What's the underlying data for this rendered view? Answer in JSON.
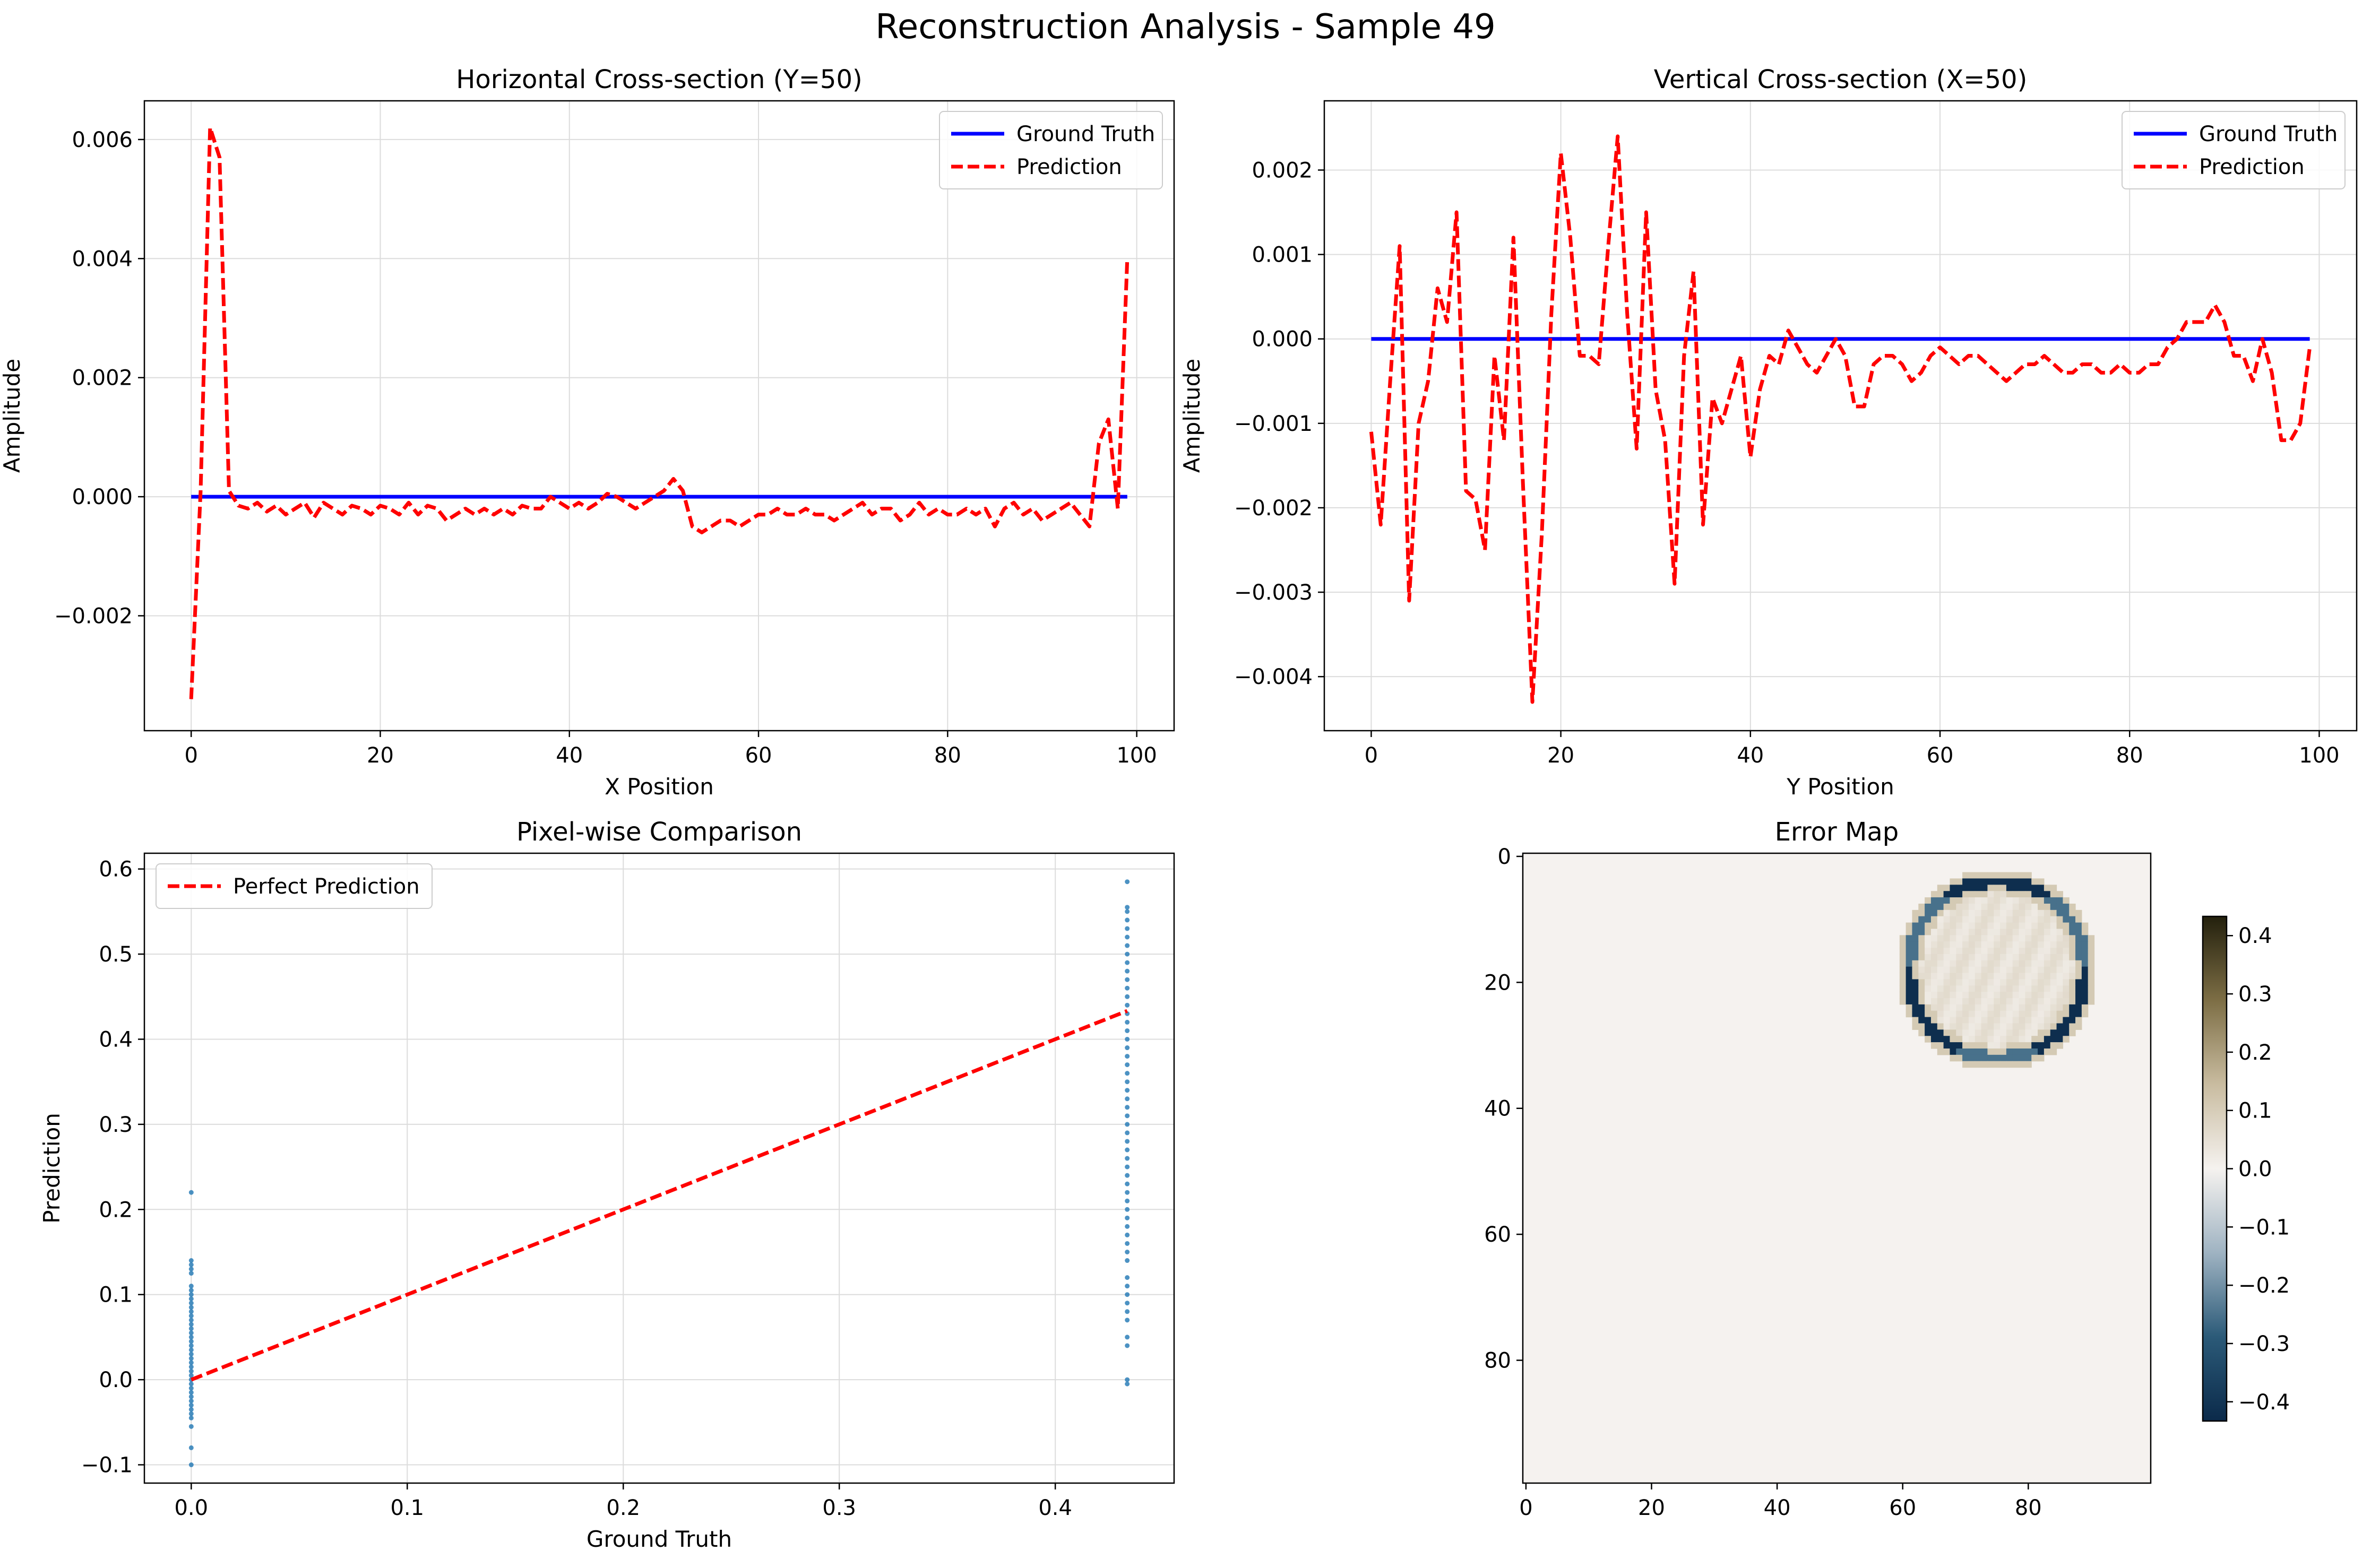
{
  "figure": {
    "title": "Reconstruction Analysis - Sample 49"
  },
  "chart_data": [
    {
      "type": "line",
      "title": "Horizontal Cross-section (Y=50)",
      "xlabel": "X Position",
      "ylabel": "Amplitude",
      "xlim": [
        -4.95,
        103.95
      ],
      "ylim": [
        -0.00393,
        0.00665
      ],
      "xticks": [
        0,
        20,
        40,
        60,
        80,
        100
      ],
      "yticks": [
        -0.002,
        0,
        0.002,
        0.004,
        0.006
      ],
      "ytick_labels": [
        "−0.002",
        "0.000",
        "0.002",
        "0.004",
        "0.006"
      ],
      "grid": true,
      "legend": "upper-right",
      "series": [
        {
          "name": "Ground Truth",
          "color": "#0000ff",
          "style": "solid",
          "x_start": 0,
          "x_step": 1,
          "values": [
            0,
            0,
            0,
            0,
            0,
            0,
            0,
            0,
            0,
            0,
            0,
            0,
            0,
            0,
            0,
            0,
            0,
            0,
            0,
            0,
            0,
            0,
            0,
            0,
            0,
            0,
            0,
            0,
            0,
            0,
            0,
            0,
            0,
            0,
            0,
            0,
            0,
            0,
            0,
            0,
            0,
            0,
            0,
            0,
            0,
            0,
            0,
            0,
            0,
            0,
            0,
            0,
            0,
            0,
            0,
            0,
            0,
            0,
            0,
            0,
            0,
            0,
            0,
            0,
            0,
            0,
            0,
            0,
            0,
            0,
            0,
            0,
            0,
            0,
            0,
            0,
            0,
            0,
            0,
            0,
            0,
            0,
            0,
            0,
            0,
            0,
            0,
            0,
            0,
            0,
            0,
            0,
            0,
            0,
            0,
            0,
            0,
            0,
            0,
            0
          ]
        },
        {
          "name": "Prediction",
          "color": "#ff0000",
          "style": "dashed",
          "x_start": 0,
          "x_step": 1,
          "values": [
            -0.0034,
            0.0001,
            0.0062,
            0.0057,
            0.0001,
            -0.00015,
            -0.0002,
            -0.0001,
            -0.00025,
            -0.00015,
            -0.0003,
            -0.0002,
            -0.0001,
            -0.00035,
            -0.0001,
            -0.0002,
            -0.0003,
            -0.00015,
            -0.0002,
            -0.0003,
            -0.00015,
            -0.0002,
            -0.0003,
            -0.0001,
            -0.0003,
            -0.00015,
            -0.0002,
            -0.0004,
            -0.0003,
            -0.0002,
            -0.0003,
            -0.0002,
            -0.0003,
            -0.0002,
            -0.0003,
            -0.00015,
            -0.0002,
            -0.0002,
            0.0,
            -0.0001,
            -0.0002,
            -0.0001,
            -0.0002,
            -0.0001,
            5e-05,
            0.0,
            -0.0001,
            -0.0002,
            -0.0001,
            0.0,
            0.0001,
            0.0003,
            0.0001,
            -0.0005,
            -0.0006,
            -0.0005,
            -0.0004,
            -0.0004,
            -0.0005,
            -0.0004,
            -0.0003,
            -0.0003,
            -0.0002,
            -0.0003,
            -0.0003,
            -0.0002,
            -0.0003,
            -0.0003,
            -0.0004,
            -0.0003,
            -0.0002,
            -0.0001,
            -0.0003,
            -0.0002,
            -0.0002,
            -0.0004,
            -0.0003,
            -0.0001,
            -0.0003,
            -0.0002,
            -0.0003,
            -0.0003,
            -0.0002,
            -0.0003,
            -0.0002,
            -0.0005,
            -0.0002,
            -0.0001,
            -0.0003,
            -0.0002,
            -0.0004,
            -0.0003,
            -0.0002,
            -0.0001,
            -0.0003,
            -0.0005,
            0.0009,
            0.0013,
            -0.0002,
            0.004
          ]
        }
      ]
    },
    {
      "type": "line",
      "title": "Vertical Cross-section (X=50)",
      "xlabel": "Y Position",
      "ylabel": "Amplitude",
      "xlim": [
        -4.95,
        103.95
      ],
      "ylim": [
        -0.00464,
        0.00282
      ],
      "xticks": [
        0,
        20,
        40,
        60,
        80,
        100
      ],
      "yticks": [
        -0.004,
        -0.003,
        -0.002,
        -0.001,
        0,
        0.001,
        0.002
      ],
      "ytick_labels": [
        "−0.004",
        "−0.003",
        "−0.002",
        "−0.001",
        "0.000",
        "0.001",
        "0.002"
      ],
      "grid": true,
      "legend": "upper-right",
      "series": [
        {
          "name": "Ground Truth",
          "color": "#0000ff",
          "style": "solid",
          "x_start": 0,
          "x_step": 1,
          "values": [
            0,
            0,
            0,
            0,
            0,
            0,
            0,
            0,
            0,
            0,
            0,
            0,
            0,
            0,
            0,
            0,
            0,
            0,
            0,
            0,
            0,
            0,
            0,
            0,
            0,
            0,
            0,
            0,
            0,
            0,
            0,
            0,
            0,
            0,
            0,
            0,
            0,
            0,
            0,
            0,
            0,
            0,
            0,
            0,
            0,
            0,
            0,
            0,
            0,
            0,
            0,
            0,
            0,
            0,
            0,
            0,
            0,
            0,
            0,
            0,
            0,
            0,
            0,
            0,
            0,
            0,
            0,
            0,
            0,
            0,
            0,
            0,
            0,
            0,
            0,
            0,
            0,
            0,
            0,
            0,
            0,
            0,
            0,
            0,
            0,
            0,
            0,
            0,
            0,
            0,
            0,
            0,
            0,
            0,
            0,
            0,
            0,
            0,
            0,
            0
          ]
        },
        {
          "name": "Prediction",
          "color": "#ff0000",
          "style": "dashed",
          "x_start": 0,
          "x_step": 1,
          "values": [
            -0.0011,
            -0.0022,
            -0.0005,
            0.0011,
            -0.0031,
            -0.001,
            -0.0005,
            0.0006,
            0.0002,
            0.0015,
            -0.0018,
            -0.0019,
            -0.0025,
            -0.0002,
            -0.0012,
            0.0012,
            -0.0017,
            -0.0043,
            -0.0023,
            0.0003,
            0.0022,
            0.0012,
            -0.0002,
            -0.0002,
            -0.0003,
            0.0011,
            0.0024,
            0.0003,
            -0.0013,
            0.0015,
            -0.0006,
            -0.0012,
            -0.0029,
            -0.0002,
            0.0008,
            -0.0022,
            -0.0007,
            -0.001,
            -0.0006,
            -0.0002,
            -0.0014,
            -0.0006,
            -0.0002,
            -0.0003,
            0.0001,
            -0.0001,
            -0.0003,
            -0.0004,
            -0.0002,
            0.0,
            -0.0002,
            -0.0008,
            -0.0008,
            -0.0003,
            -0.0002,
            -0.0002,
            -0.0003,
            -0.0005,
            -0.0004,
            -0.0002,
            -0.0001,
            -0.0002,
            -0.0003,
            -0.0002,
            -0.0002,
            -0.0003,
            -0.0004,
            -0.0005,
            -0.0004,
            -0.0003,
            -0.0003,
            -0.0002,
            -0.0003,
            -0.0004,
            -0.0004,
            -0.0003,
            -0.0003,
            -0.0004,
            -0.0004,
            -0.0003,
            -0.0004,
            -0.0004,
            -0.0003,
            -0.0003,
            -0.0001,
            0.0,
            0.0002,
            0.0002,
            0.0002,
            0.0004,
            0.0002,
            -0.0002,
            -0.0002,
            -0.0005,
            0.0,
            -0.0004,
            -0.0012,
            -0.0012,
            -0.001,
            -0.0001
          ]
        }
      ]
    },
    {
      "type": "scatter",
      "title": "Pixel-wise Comparison",
      "xlabel": "Ground Truth",
      "ylabel": "Prediction",
      "xlim": [
        -0.0217,
        0.455
      ],
      "ylim": [
        -0.1215,
        0.6185
      ],
      "xticks": [
        0,
        0.1,
        0.2,
        0.3,
        0.4
      ],
      "xtick_labels": [
        "0.0",
        "0.1",
        "0.2",
        "0.3",
        "0.4"
      ],
      "yticks": [
        -0.1,
        0,
        0.1,
        0.2,
        0.3,
        0.4,
        0.5,
        0.6
      ],
      "ytick_labels": [
        "−0.1",
        "0.0",
        "0.1",
        "0.2",
        "0.3",
        "0.4",
        "0.5",
        "0.6"
      ],
      "grid": true,
      "legend": "upper-left",
      "point_color": "#1f77b4",
      "reference_line": {
        "name": "Perfect Prediction",
        "color": "#ff0000",
        "style": "dashed",
        "x": [
          0,
          0.4333
        ],
        "y": [
          0,
          0.4333
        ]
      },
      "clusters": [
        {
          "x": 0,
          "y_values": [
            -0.1,
            -0.08,
            -0.055,
            -0.045,
            -0.04,
            -0.035,
            -0.03,
            -0.025,
            -0.02,
            -0.015,
            -0.01,
            -0.005,
            0,
            0.005,
            0.01,
            0.015,
            0.02,
            0.025,
            0.03,
            0.035,
            0.04,
            0.045,
            0.05,
            0.055,
            0.06,
            0.065,
            0.07,
            0.075,
            0.08,
            0.085,
            0.09,
            0.095,
            0.1,
            0.105,
            0.11,
            0.125,
            0.13,
            0.135,
            0.14,
            0.22
          ]
        },
        {
          "x": 0.4333,
          "y_values": [
            -0.005,
            0,
            0.04,
            0.05,
            0.07,
            0.08,
            0.09,
            0.1,
            0.11,
            0.12,
            0.14,
            0.15,
            0.16,
            0.17,
            0.18,
            0.19,
            0.2,
            0.21,
            0.22,
            0.23,
            0.24,
            0.25,
            0.26,
            0.27,
            0.28,
            0.29,
            0.3,
            0.31,
            0.32,
            0.33,
            0.34,
            0.35,
            0.36,
            0.37,
            0.38,
            0.39,
            0.4,
            0.41,
            0.42,
            0.43,
            0.44,
            0.45,
            0.46,
            0.47,
            0.48,
            0.49,
            0.5,
            0.51,
            0.52,
            0.53,
            0.54,
            0.55,
            0.555,
            0.585
          ]
        }
      ]
    },
    {
      "type": "heatmap",
      "title": "Error Map",
      "grid_size": [
        100,
        100
      ],
      "xticks": [
        0,
        20,
        40,
        60,
        80
      ],
      "yticks": [
        0,
        20,
        40,
        60,
        80
      ],
      "background_value": 0,
      "features": [
        {
          "kind": "ring",
          "center": [
            75,
            18
          ],
          "radius": 14,
          "outer_value": -0.42,
          "inner_value": 0.12
        }
      ],
      "colorbar": {
        "range": [
          -0.433,
          0.433
        ],
        "ticks": [
          -0.4,
          -0.3,
          -0.2,
          -0.1,
          0,
          0.1,
          0.2,
          0.3,
          0.4
        ],
        "tick_labels": [
          "−0.4",
          "−0.3",
          "−0.2",
          "−0.1",
          "0.0",
          "0.1",
          "0.2",
          "0.3",
          "0.4"
        ],
        "colors": [
          "#0b2a4a",
          "#2b5a78",
          "#9fb3c2",
          "#f5f2ef",
          "#c9bca0",
          "#7d6e45",
          "#23200d"
        ]
      }
    }
  ]
}
